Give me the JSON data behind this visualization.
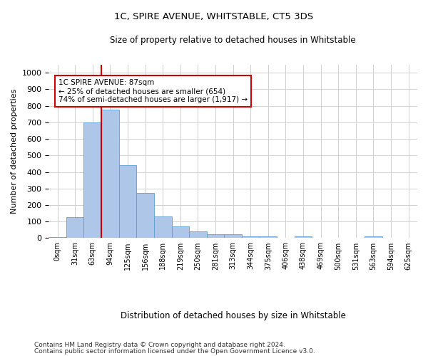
{
  "title": "1C, SPIRE AVENUE, WHITSTABLE, CT5 3DS",
  "subtitle": "Size of property relative to detached houses in Whitstable",
  "xlabel": "Distribution of detached houses by size in Whitstable",
  "ylabel": "Number of detached properties",
  "bar_labels": [
    "0sqm",
    "31sqm",
    "63sqm",
    "94sqm",
    "125sqm",
    "156sqm",
    "188sqm",
    "219sqm",
    "250sqm",
    "281sqm",
    "313sqm",
    "344sqm",
    "375sqm",
    "406sqm",
    "438sqm",
    "469sqm",
    "500sqm",
    "531sqm",
    "563sqm",
    "594sqm",
    "625sqm"
  ],
  "bar_values": [
    8,
    125,
    700,
    775,
    440,
    272,
    130,
    70,
    40,
    25,
    22,
    12,
    12,
    0,
    10,
    0,
    0,
    0,
    10,
    0,
    0
  ],
  "bar_color": "#aec6e8",
  "bar_edge_color": "#5a9fd4",
  "vline_color": "#cc0000",
  "annotation_text": "1C SPIRE AVENUE: 87sqm\n← 25% of detached houses are smaller (654)\n74% of semi-detached houses are larger (1,917) →",
  "annotation_box_color": "#ffffff",
  "annotation_box_edge": "#cc0000",
  "ylim": [
    0,
    1050
  ],
  "yticks": [
    0,
    100,
    200,
    300,
    400,
    500,
    600,
    700,
    800,
    900,
    1000
  ],
  "footnote1": "Contains HM Land Registry data © Crown copyright and database right 2024.",
  "footnote2": "Contains public sector information licensed under the Open Government Licence v3.0.",
  "background_color": "#ffffff",
  "grid_color": "#d0d0d0"
}
